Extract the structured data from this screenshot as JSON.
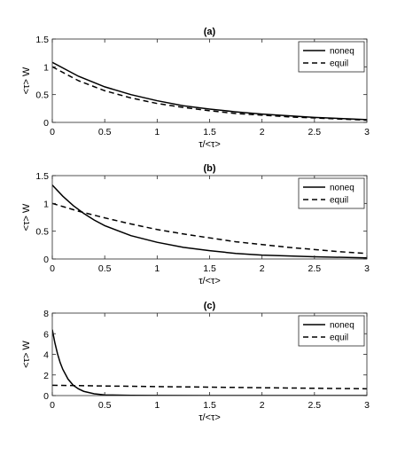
{
  "chart_data": [
    {
      "type": "line",
      "title": "(a)",
      "xlabel": "τ/<τ>",
      "ylabel": "<τ> W",
      "xlim": [
        0,
        3
      ],
      "ylim": [
        0,
        1.5
      ],
      "xticks": [
        "0",
        "0.5",
        "1",
        "1.5",
        "2",
        "2.5",
        "3"
      ],
      "yticks": [
        "0",
        "0.5",
        "1",
        "1.5"
      ],
      "grid": false,
      "legend_position": "top-right",
      "series": [
        {
          "name": "noneq",
          "style": "solid",
          "x": [
            0,
            0.25,
            0.5,
            0.75,
            1,
            1.25,
            1.5,
            1.75,
            2,
            2.25,
            2.5,
            2.75,
            3
          ],
          "y": [
            1.08,
            0.83,
            0.64,
            0.5,
            0.39,
            0.3,
            0.24,
            0.19,
            0.15,
            0.12,
            0.09,
            0.07,
            0.05
          ]
        },
        {
          "name": "equil",
          "style": "dashed",
          "x": [
            0,
            0.25,
            0.5,
            0.75,
            1,
            1.25,
            1.5,
            1.75,
            2,
            2.25,
            2.5,
            2.75,
            3
          ],
          "y": [
            1.0,
            0.75,
            0.57,
            0.44,
            0.34,
            0.27,
            0.21,
            0.16,
            0.13,
            0.1,
            0.08,
            0.06,
            0.04
          ]
        }
      ]
    },
    {
      "type": "line",
      "title": "(b)",
      "xlabel": "τ/<τ>",
      "ylabel": "<τ> W",
      "xlim": [
        0,
        3
      ],
      "ylim": [
        0,
        1.5
      ],
      "xticks": [
        "0",
        "0.5",
        "1",
        "1.5",
        "2",
        "2.5",
        "3"
      ],
      "yticks": [
        "0",
        "0.5",
        "1",
        "1.5"
      ],
      "grid": false,
      "legend_position": "top-right",
      "series": [
        {
          "name": "noneq",
          "style": "solid",
          "x": [
            0,
            0.1,
            0.2,
            0.3,
            0.4,
            0.5,
            0.75,
            1,
            1.25,
            1.5,
            1.75,
            2,
            2.5,
            3
          ],
          "y": [
            1.33,
            1.13,
            0.96,
            0.82,
            0.7,
            0.6,
            0.42,
            0.3,
            0.21,
            0.15,
            0.1,
            0.07,
            0.04,
            0.02
          ]
        },
        {
          "name": "equil",
          "style": "dashed",
          "x": [
            0,
            0.25,
            0.5,
            0.75,
            1,
            1.25,
            1.5,
            1.75,
            2,
            2.25,
            2.5,
            2.75,
            3
          ],
          "y": [
            1.0,
            0.86,
            0.74,
            0.63,
            0.53,
            0.45,
            0.38,
            0.31,
            0.26,
            0.21,
            0.17,
            0.13,
            0.1
          ]
        }
      ]
    },
    {
      "type": "line",
      "title": "(c)",
      "xlabel": "τ/<τ>",
      "ylabel": "<τ> W",
      "xlim": [
        0,
        3
      ],
      "ylim": [
        0,
        8
      ],
      "xticks": [
        "0",
        "0.5",
        "1",
        "1.5",
        "2",
        "2.5",
        "3"
      ],
      "yticks": [
        "0",
        "2",
        "4",
        "6",
        "8"
      ],
      "grid": false,
      "legend_position": "top-right",
      "series": [
        {
          "name": "noneq",
          "style": "solid",
          "x": [
            0,
            0.025,
            0.05,
            0.075,
            0.1,
            0.15,
            0.2,
            0.25,
            0.3,
            0.4,
            0.5,
            0.75,
            1,
            1.5,
            2,
            3
          ],
          "y": [
            6.4,
            5.1,
            4.05,
            3.2,
            2.55,
            1.6,
            1.0,
            0.65,
            0.41,
            0.17,
            0.07,
            0.02,
            0.01,
            0,
            0,
            0
          ]
        },
        {
          "name": "equil",
          "style": "dashed",
          "x": [
            0,
            0.5,
            1,
            1.5,
            2,
            2.5,
            3
          ],
          "y": [
            1.0,
            0.93,
            0.87,
            0.82,
            0.76,
            0.71,
            0.66
          ]
        }
      ]
    }
  ]
}
